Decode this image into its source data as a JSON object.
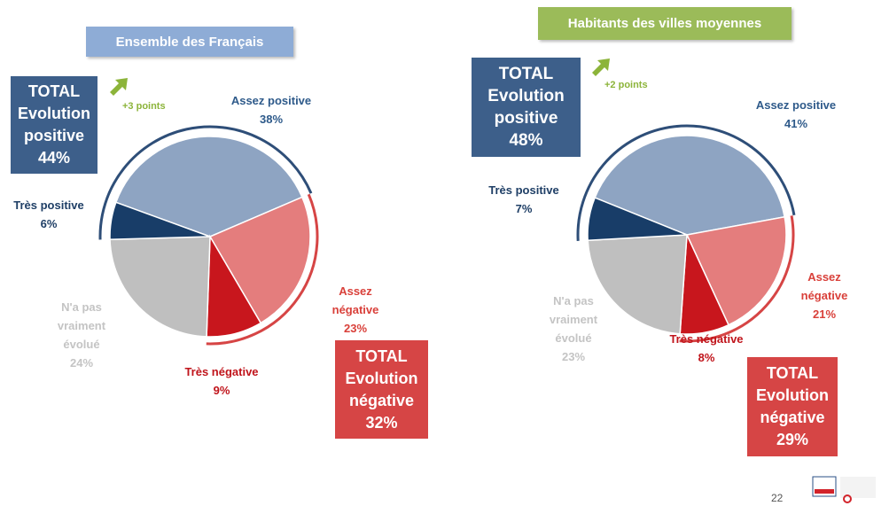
{
  "chart_data": [
    {
      "type": "pie",
      "title": "Ensemble des Français",
      "categories": [
        "Assez positive",
        "Assez négative",
        "Très négative",
        "N'a pas vraiment évolué",
        "Très positive"
      ],
      "values": [
        38,
        23,
        9,
        24,
        6
      ],
      "value_labels": [
        "38%",
        "23%",
        "9%",
        "24%",
        "6%"
      ],
      "colors": [
        "#8ea4c2",
        "#e47d7d",
        "#c8161d",
        "#bfbfbf",
        "#183d68"
      ],
      "total_positive": "TOTAL Evolution positive",
      "total_positive_value": "44%",
      "total_negative": "TOTAL Evolution négative",
      "total_negative_value": "32%",
      "change": "+3 points"
    },
    {
      "type": "pie",
      "title": "Habitants des villes moyennes",
      "categories": [
        "Assez positive",
        "Assez négative",
        "Très négative",
        "N'a pas vraiment évolué",
        "Très positive"
      ],
      "values": [
        41,
        21,
        8,
        23,
        7
      ],
      "value_labels": [
        "41%",
        "21%",
        "8%",
        "23%",
        "7%"
      ],
      "colors": [
        "#8ea4c2",
        "#e47d7d",
        "#c8161d",
        "#bfbfbf",
        "#183d68"
      ],
      "total_positive": "TOTAL Evolution positive",
      "total_positive_value": "48%",
      "total_negative": "TOTAL Evolution négative",
      "total_negative_value": "29%",
      "change": "+2 points"
    }
  ],
  "page_number": "22"
}
